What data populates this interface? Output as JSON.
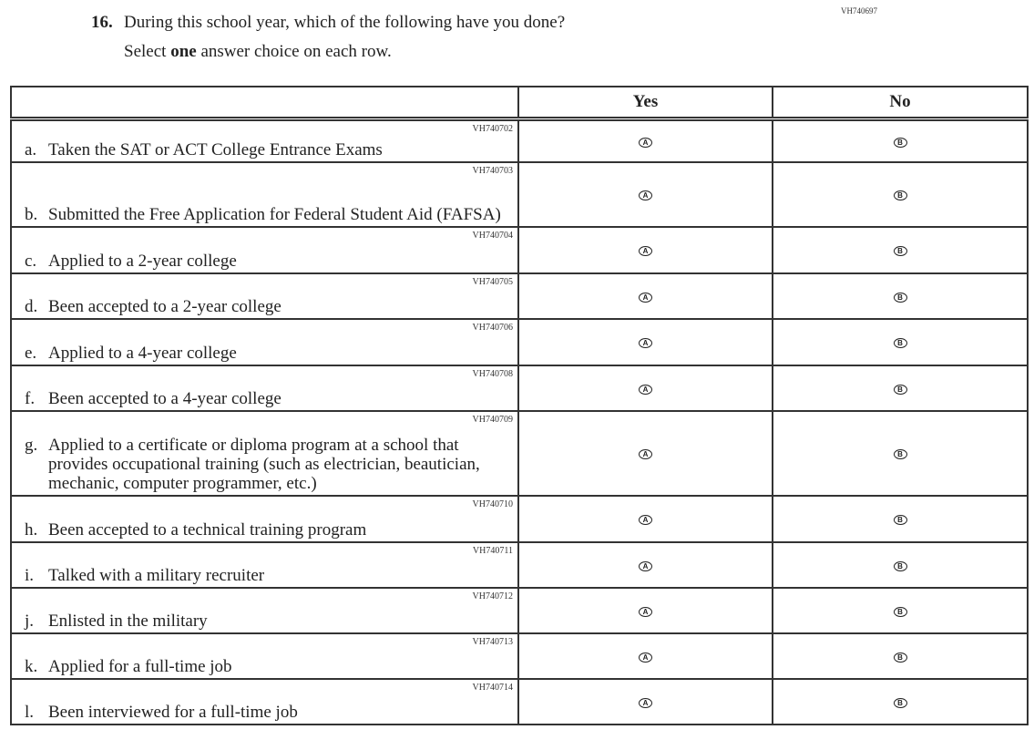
{
  "question": {
    "code": "VH740697",
    "number": "16.",
    "text": "During this school year, which of the following have you done?",
    "instruction_pre": "Select ",
    "instruction_bold": "one",
    "instruction_post": " answer choice on each row."
  },
  "columns": [
    "",
    "Yes",
    "No"
  ],
  "options": [
    {
      "label": "A",
      "column": "Yes"
    },
    {
      "label": "B",
      "column": "No"
    }
  ],
  "rows": [
    {
      "code": "VH740702",
      "letter": "a.",
      "text": "Taken the SAT or ACT College Entrance Exams"
    },
    {
      "code": "VH740703",
      "letter": "b.",
      "text": "Submitted the Free Application for Federal Student Aid (FAFSA)"
    },
    {
      "code": "VH740704",
      "letter": "c.",
      "text": "Applied to a 2-year college"
    },
    {
      "code": "VH740705",
      "letter": "d.",
      "text": "Been accepted to a 2-year college"
    },
    {
      "code": "VH740706",
      "letter": "e.",
      "text": "Applied to a 4-year college"
    },
    {
      "code": "VH740708",
      "letter": "f.",
      "text": "Been accepted to a 4-year college"
    },
    {
      "code": "VH740709",
      "letter": "g.",
      "text": "Applied to a certificate or diploma program at a school that provides occupational training (such as electrician, beautician, mechanic, computer programmer, etc.)"
    },
    {
      "code": "VH740710",
      "letter": "h.",
      "text": "Been accepted to a technical training program"
    },
    {
      "code": "VH740711",
      "letter": "i.",
      "text": "Talked with a military recruiter"
    },
    {
      "code": "VH740712",
      "letter": "j.",
      "text": "Enlisted in the military"
    },
    {
      "code": "VH740713",
      "letter": "k.",
      "text": "Applied for a full-time job"
    },
    {
      "code": "VH740714",
      "letter": "l.",
      "text": "Been interviewed for a full-time job"
    }
  ]
}
